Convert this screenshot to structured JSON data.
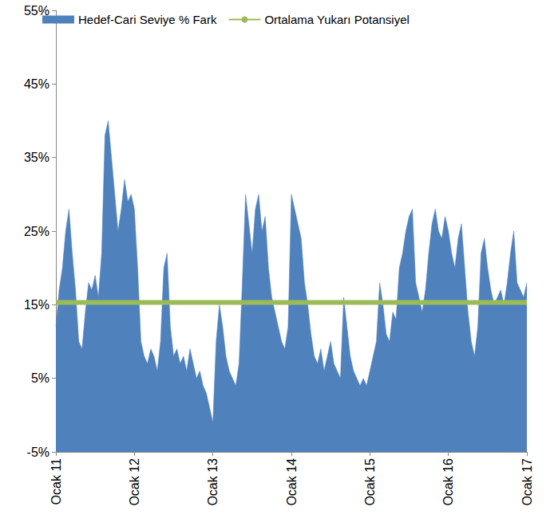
{
  "chart_data": {
    "type": "line",
    "categories": [
      "Ocak 11",
      null,
      null,
      null,
      null,
      null,
      null,
      null,
      null,
      null,
      null,
      null,
      null,
      null,
      null,
      null,
      null,
      null,
      null,
      null,
      null,
      null,
      null,
      null,
      "Ocak 12",
      null,
      null,
      null,
      null,
      null,
      null,
      null,
      null,
      null,
      null,
      null,
      null,
      null,
      null,
      null,
      null,
      null,
      null,
      null,
      null,
      null,
      null,
      null,
      "Ocak 13",
      null,
      null,
      null,
      null,
      null,
      null,
      null,
      null,
      null,
      null,
      null,
      null,
      null,
      null,
      null,
      null,
      null,
      null,
      null,
      null,
      null,
      null,
      null,
      "Ocak 14",
      null,
      null,
      null,
      null,
      null,
      null,
      null,
      null,
      null,
      null,
      null,
      null,
      null,
      null,
      null,
      null,
      null,
      null,
      null,
      null,
      null,
      null,
      null,
      "Ocak 15",
      null,
      null,
      null,
      null,
      null,
      null,
      null,
      null,
      null,
      null,
      null,
      null,
      null,
      null,
      null,
      null,
      null,
      null,
      null,
      null,
      null,
      null,
      null,
      "Ocak 16",
      null,
      null,
      null,
      null,
      null,
      null,
      null,
      null,
      null,
      null,
      null,
      null,
      null,
      null,
      null,
      null,
      null,
      null,
      null,
      null,
      null,
      null,
      null,
      "Ocak 17"
    ],
    "series": [
      {
        "name": "Hedef-Cari Seviye % Fark",
        "type": "area",
        "color": "#4f81bd",
        "values": [
          12,
          17,
          20,
          25,
          28,
          22,
          17,
          10,
          9,
          14,
          18,
          17,
          19,
          16,
          22,
          38,
          40,
          35,
          30,
          25,
          28,
          32,
          29,
          30,
          28,
          20,
          10,
          8,
          7,
          9,
          8,
          6,
          10,
          20,
          22,
          12,
          8,
          9,
          7,
          8,
          6,
          9,
          7,
          5,
          6,
          4,
          3,
          1,
          -1,
          10,
          15,
          12,
          8,
          6,
          5,
          4,
          7,
          18,
          30,
          26,
          22,
          28,
          30,
          25,
          27,
          20,
          16,
          14,
          12,
          10,
          9,
          12,
          30,
          28,
          26,
          24,
          18,
          15,
          11,
          8,
          7,
          9,
          6,
          8,
          10,
          7,
          6,
          5,
          16,
          12,
          8,
          6,
          5,
          4,
          5,
          4,
          6,
          8,
          10,
          18,
          15,
          11,
          10,
          14,
          13,
          20,
          22,
          25,
          27,
          28,
          18,
          16,
          14,
          17,
          22,
          26,
          28,
          25,
          24,
          27,
          25,
          22,
          20,
          24,
          26,
          20,
          14,
          10,
          8,
          12,
          22,
          24,
          20,
          17,
          15,
          16,
          17,
          15,
          18,
          22,
          25,
          18,
          17,
          16,
          18
        ]
      },
      {
        "name": "Ortalama Yukarı Potansiyel",
        "type": "line",
        "color": "#9bbb59",
        "values": [
          15.3,
          15.3,
          15.3,
          15.3,
          15.3,
          15.3,
          15.3,
          15.3,
          15.3,
          15.3,
          15.3,
          15.3,
          15.3,
          15.3,
          15.3,
          15.3,
          15.3,
          15.3,
          15.3,
          15.3,
          15.3,
          15.3,
          15.3,
          15.3,
          15.3,
          15.3,
          15.3,
          15.3,
          15.3,
          15.3,
          15.3,
          15.3,
          15.3,
          15.3,
          15.3,
          15.3,
          15.3,
          15.3,
          15.3,
          15.3,
          15.3,
          15.3,
          15.3,
          15.3,
          15.3,
          15.3,
          15.3,
          15.3,
          15.3,
          15.3,
          15.3,
          15.3,
          15.3,
          15.3,
          15.3,
          15.3,
          15.3,
          15.3,
          15.3,
          15.3,
          15.3,
          15.3,
          15.3,
          15.3,
          15.3,
          15.3,
          15.3,
          15.3,
          15.3,
          15.3,
          15.3,
          15.3,
          15.3,
          15.3,
          15.3,
          15.3,
          15.3,
          15.3,
          15.3,
          15.3,
          15.3,
          15.3,
          15.3,
          15.3,
          15.3,
          15.3,
          15.3,
          15.3,
          15.3,
          15.3,
          15.3,
          15.3,
          15.3,
          15.3,
          15.3,
          15.3,
          15.3,
          15.3,
          15.3,
          15.3,
          15.3,
          15.3,
          15.3,
          15.3,
          15.3,
          15.3,
          15.3,
          15.3,
          15.3,
          15.3,
          15.3,
          15.3,
          15.3,
          15.3,
          15.3,
          15.3,
          15.3,
          15.3,
          15.3,
          15.3,
          15.3,
          15.3,
          15.3,
          15.3,
          15.3,
          15.3,
          15.3,
          15.3,
          15.3,
          15.3,
          15.3,
          15.3,
          15.3,
          15.3,
          15.3,
          15.3,
          15.3,
          15.3,
          15.3,
          15.3,
          15.3,
          15.3,
          15.3,
          15.3,
          15.3
        ]
      }
    ],
    "ylim": [
      -5,
      55
    ],
    "yticks": [
      {
        "value": -5,
        "label": "-5%"
      },
      {
        "value": 5,
        "label": "5%"
      },
      {
        "value": 15,
        "label": "15%"
      },
      {
        "value": 25,
        "label": "25%"
      },
      {
        "value": 35,
        "label": "35%"
      },
      {
        "value": 45,
        "label": "45%"
      },
      {
        "value": 55,
        "label": "55%"
      }
    ],
    "grid": false,
    "legend": "top"
  }
}
